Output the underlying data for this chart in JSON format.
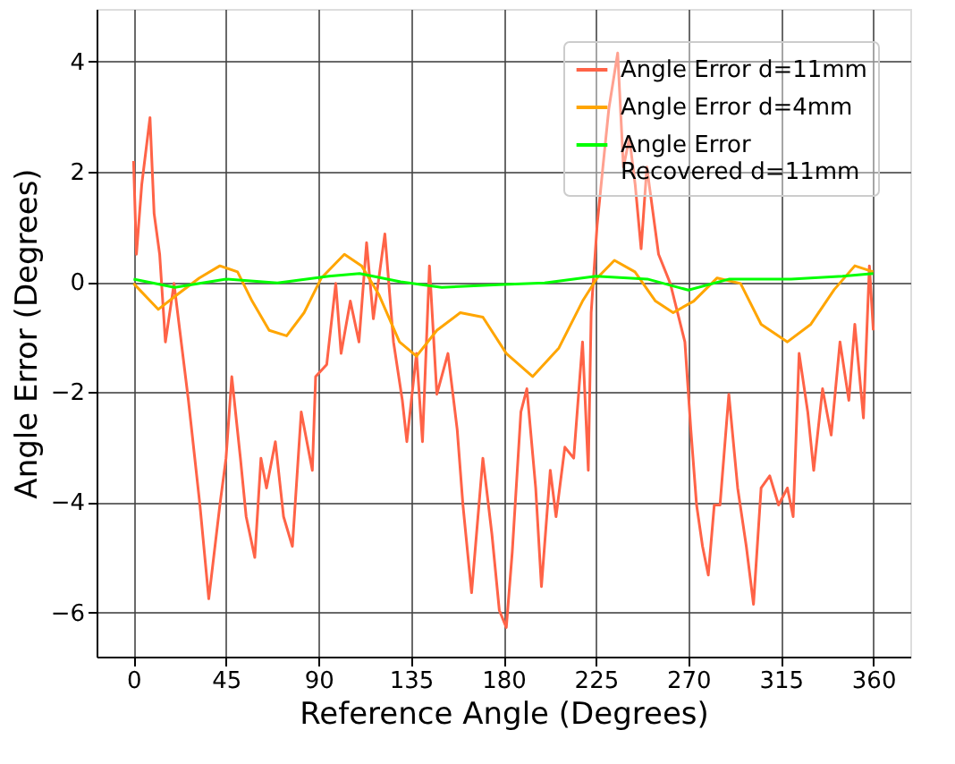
{
  "chart_data": {
    "type": "line",
    "xlabel": "Reference Angle (Degrees)",
    "ylabel": "Angle Error (Degrees)",
    "xlim": [
      -18,
      378
    ],
    "ylim": [
      -6.8,
      4.95
    ],
    "xticks": [
      0,
      45,
      90,
      135,
      180,
      225,
      270,
      315,
      360
    ],
    "yticks": [
      -6,
      -4,
      -2,
      0,
      2,
      4
    ],
    "grid": true,
    "legend": "top right",
    "line_style": "solid",
    "marker": "none",
    "series": [
      {
        "name": "Angle Error d=11mm",
        "color": "#ff6347",
        "x": [
          0,
          1.4,
          4,
          8,
          10,
          12.7,
          15.5,
          19.7,
          22.5,
          26.7,
          32.3,
          36.6,
          42,
          45,
          47.8,
          52,
          54.8,
          59,
          62,
          64.7,
          69,
          73,
          77.3,
          81.6,
          87,
          88.6,
          94,
          98.4,
          101,
          105.5,
          109.7,
          113.4,
          116.7,
          122.3,
          126.5,
          130.8,
          133,
          137.7,
          140.6,
          144,
          147.6,
          153,
          157.5,
          160.3,
          164.5,
          170,
          174.4,
          178,
          181.4,
          184.3,
          188.5,
          191.4,
          195.7,
          198.5,
          202.8,
          205.6,
          209.9,
          214.2,
          218.5,
          221.3,
          222.7,
          225.6,
          228.4,
          231.3,
          235.6,
          238.4,
          241.3,
          244.1,
          247,
          249.8,
          255.5,
          261.2,
          265.5,
          268.3,
          271.2,
          274,
          276.9,
          279.7,
          282.6,
          285.4,
          289.7,
          294,
          298.2,
          301.7,
          305.4,
          309.6,
          313.9,
          318.2,
          321,
          323.9,
          328.1,
          331,
          335.3,
          339.5,
          343.8,
          348.1,
          351,
          355.2,
          358.1,
          360
        ],
        "values": [
          2.19,
          0.5,
          1.77,
          2.98,
          1.24,
          0.5,
          -1.09,
          -0.03,
          -0.88,
          -2.15,
          -4.05,
          -5.75,
          -4.05,
          -3.2,
          -1.72,
          -3.2,
          -4.26,
          -5.0,
          -3.2,
          -3.74,
          -2.9,
          -4.26,
          -4.8,
          -2.36,
          -3.42,
          -1.72,
          -1.5,
          -0.03,
          -1.3,
          -0.35,
          -1.09,
          0.71,
          -0.67,
          0.87,
          -1.09,
          -2.15,
          -2.9,
          -1.3,
          -2.9,
          0.29,
          -2.04,
          -1.3,
          -2.68,
          -4.05,
          -5.64,
          -3.2,
          -4.58,
          -5.96,
          -6.27,
          -4.9,
          -2.36,
          -1.94,
          -3.74,
          -5.53,
          -3.42,
          -4.26,
          -3.0,
          -3.2,
          -1.09,
          -3.42,
          -0.56,
          1.03,
          2.08,
          3.14,
          4.15,
          2.08,
          2.61,
          1.77,
          0.6,
          2.08,
          0.5,
          -0.03,
          -0.67,
          -1.09,
          -2.68,
          -4.05,
          -4.8,
          -5.32,
          -4.05,
          -4.05,
          -2.04,
          -3.74,
          -4.8,
          -5.85,
          -3.74,
          -3.52,
          -4.05,
          -3.74,
          -4.26,
          -1.3,
          -2.36,
          -3.42,
          -1.94,
          -2.78,
          -1.09,
          -2.15,
          -0.77,
          -2.47,
          0.29,
          -0.88
        ]
      },
      {
        "name": "Angle Error d=4mm",
        "color": "#ffa500",
        "x": [
          0,
          12,
          21,
          32,
          42,
          50.6,
          57.7,
          66,
          74.5,
          83,
          91.4,
          102.6,
          111,
          119.5,
          129.4,
          137.7,
          147.6,
          159,
          170,
          181.4,
          194.2,
          207,
          218.5,
          225.6,
          234,
          244,
          254,
          262.6,
          272.6,
          284,
          295.4,
          305.4,
          318.2,
          329.6,
          341,
          351,
          360
        ],
        "values": [
          -0.03,
          -0.5,
          -0.24,
          0.07,
          0.29,
          0.18,
          -0.35,
          -0.88,
          -0.98,
          -0.56,
          0.07,
          0.5,
          0.29,
          -0.24,
          -1.09,
          -1.35,
          -0.88,
          -0.56,
          -0.64,
          -1.3,
          -1.72,
          -1.2,
          -0.35,
          0.07,
          0.39,
          0.18,
          -0.35,
          -0.56,
          -0.35,
          0.07,
          -0.03,
          -0.77,
          -1.09,
          -0.77,
          -0.14,
          0.29,
          0.18
        ]
      },
      {
        "name": "Angle Error\nRecovered d=11mm",
        "color": "#00ff00",
        "x": [
          0,
          20,
          45,
          70,
          95,
          110,
          130,
          150,
          180,
          200,
          225,
          250,
          270,
          290,
          320,
          345,
          360
        ],
        "values": [
          0.05,
          -0.1,
          0.05,
          -0.02,
          0.1,
          0.15,
          0.0,
          -0.1,
          -0.05,
          -0.02,
          0.1,
          0.05,
          -0.15,
          0.05,
          0.05,
          0.1,
          0.15
        ]
      }
    ]
  }
}
